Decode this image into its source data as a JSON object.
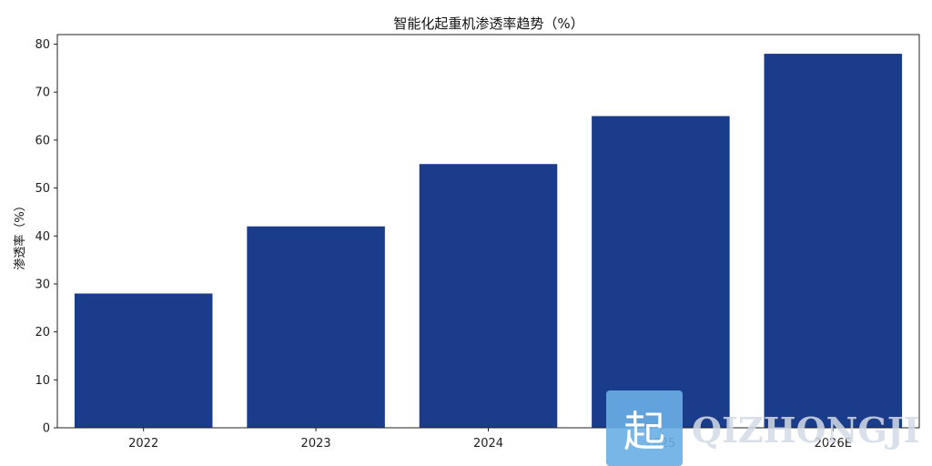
{
  "chart_data": {
    "type": "bar",
    "title": "智能化起重机渗透率趋势（%）",
    "xlabel": "",
    "ylabel": "渗透率（%）",
    "categories": [
      "2022",
      "2023",
      "2024",
      "2025",
      "2026E"
    ],
    "values": [
      28,
      42,
      55,
      65,
      78
    ],
    "ylim": [
      0,
      82
    ],
    "yticks": [
      0,
      10,
      20,
      30,
      40,
      50,
      60,
      70,
      80
    ],
    "bar_color": "#1b3c8a",
    "grid": false,
    "legend": "none"
  },
  "watermark": {
    "glyph": "起",
    "text": "QIZHONGJI",
    "badge_color": "#6aaee6"
  }
}
